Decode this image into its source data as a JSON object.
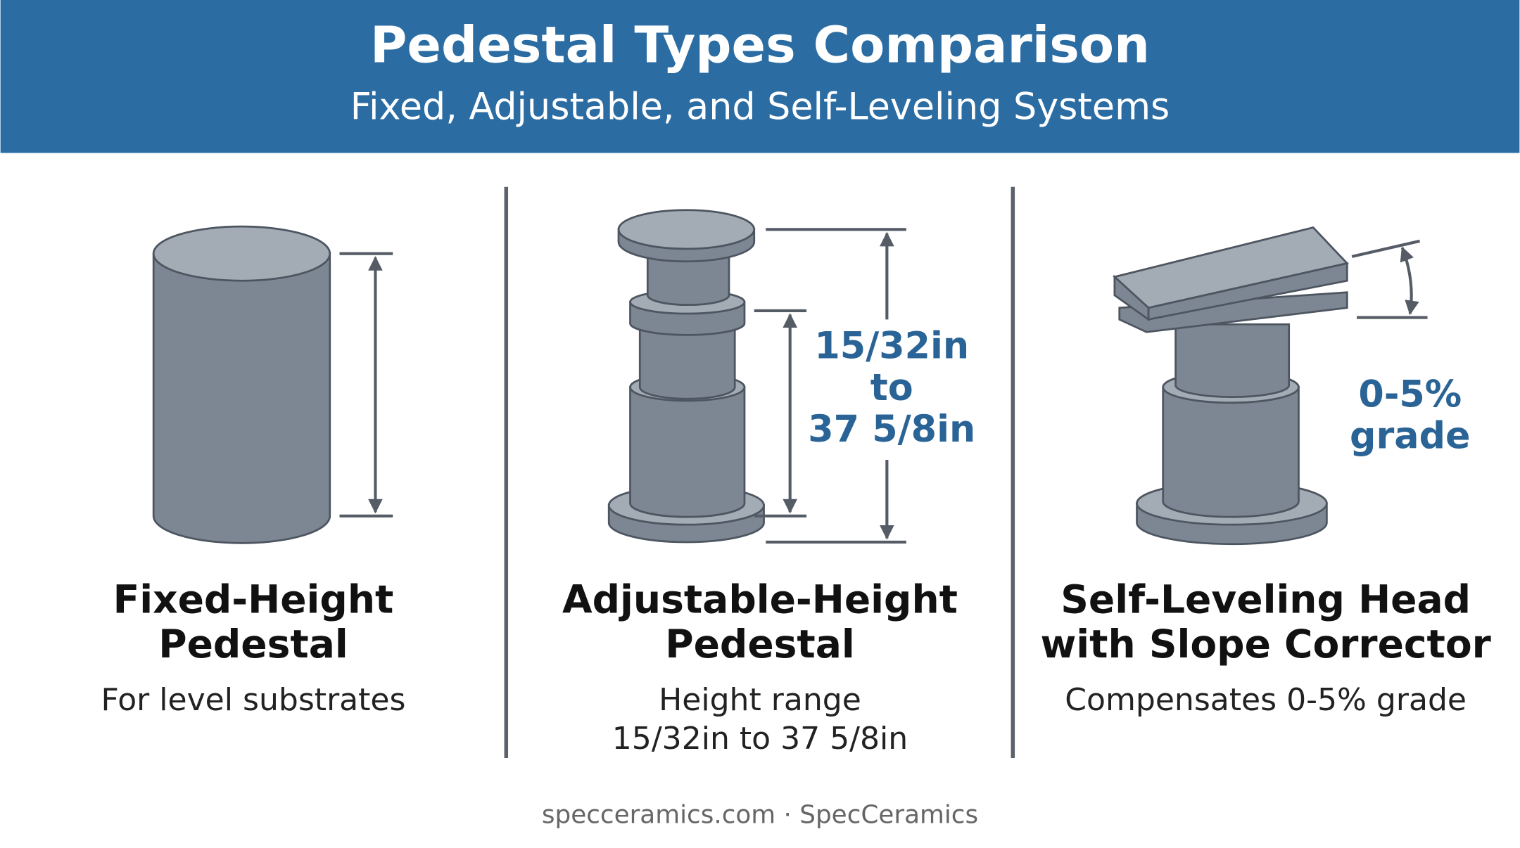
{
  "header": {
    "title": "Pedestal Types Comparison",
    "subtitle": "Fixed, Adjustable, and Self-Leveling Systems"
  },
  "panels": [
    {
      "title": [
        "Fixed-Height",
        "Pedestal"
      ],
      "description": [
        "For level substrates"
      ]
    },
    {
      "title": [
        "Adjustable-Height",
        "Pedestal"
      ],
      "description": [
        "Height range",
        "15/32in to 37 5/8in"
      ],
      "callout": [
        "15/32in",
        "to",
        "37 5/8in"
      ]
    },
    {
      "title": [
        "Self-Leveling Head",
        "with Slope Corrector"
      ],
      "description": [
        "Compensates 0-5% grade"
      ],
      "callout": [
        "0-5%",
        "grade"
      ]
    }
  ],
  "footer": "specceramics.com · SpecCeramics"
}
